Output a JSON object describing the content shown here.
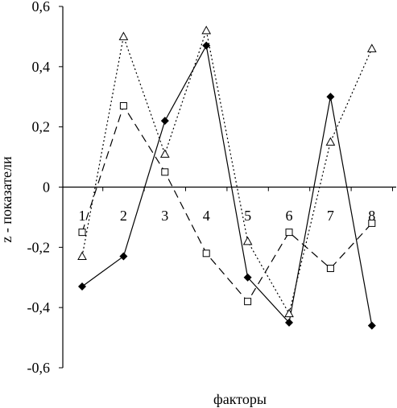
{
  "chart_data": {
    "type": "line",
    "title": "",
    "xlabel": "факторы",
    "ylabel": "z - показатели",
    "categories": [
      "1",
      "2",
      "3",
      "4",
      "5",
      "6",
      "7",
      "8"
    ],
    "ylim": [
      -0.6,
      0.6
    ],
    "yticks": [
      "-0,6",
      "-0,4",
      "-0,2",
      "0",
      "0,2",
      "0,4",
      "0,6"
    ],
    "grid": false,
    "legend": "none",
    "series": [
      {
        "marker": "diamond-filled",
        "line": "solid",
        "values": [
          -0.33,
          -0.23,
          0.22,
          0.47,
          -0.3,
          -0.45,
          0.3,
          -0.46
        ]
      },
      {
        "marker": "square-open",
        "line": "dashed",
        "values": [
          -0.15,
          0.27,
          0.05,
          -0.22,
          -0.38,
          -0.15,
          -0.27,
          -0.12
        ]
      },
      {
        "marker": "triangle-open",
        "line": "dotted",
        "values": [
          -0.23,
          0.5,
          0.11,
          0.52,
          -0.18,
          -0.42,
          0.15,
          0.46
        ]
      }
    ]
  }
}
